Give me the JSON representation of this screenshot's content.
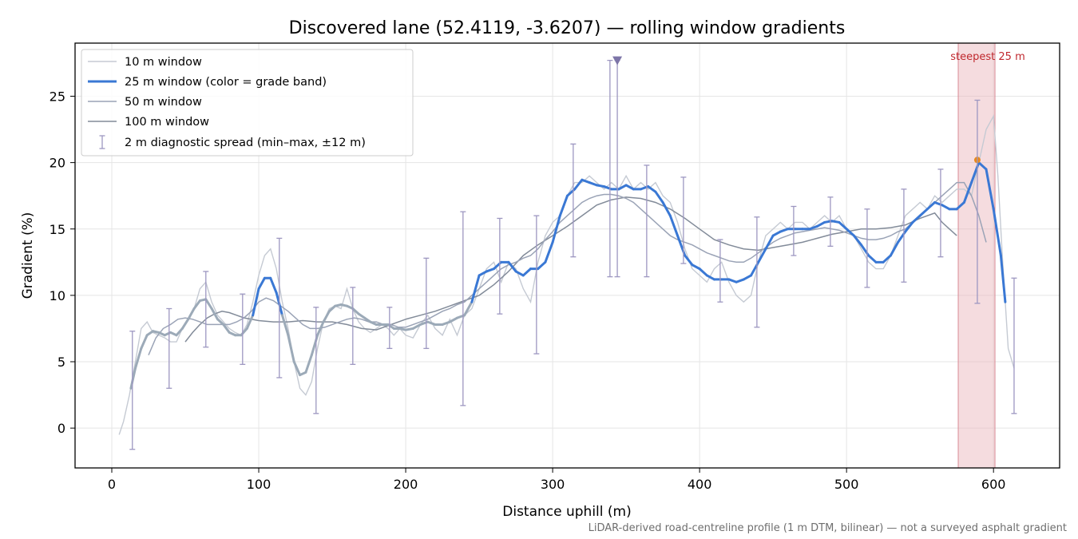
{
  "chart_data": {
    "type": "line",
    "title": "Discovered lane (52.4119, -3.6207) — rolling window gradients",
    "xlabel": "Distance uphill (m)",
    "ylabel": "Gradient (%)",
    "xlim": [
      -25,
      645
    ],
    "ylim": [
      -3,
      29
    ],
    "xticks": [
      0,
      100,
      200,
      300,
      400,
      500,
      600
    ],
    "yticks": [
      0,
      5,
      10,
      15,
      20,
      25
    ],
    "grid": true,
    "legend_position": "top-left",
    "footnote": "LiDAR-derived road-centreline profile (1 m DTM, bilinear) — not a surveyed asphalt gradient",
    "colors": {
      "w10": "#c5cad3",
      "w25": "#3a78d4",
      "w25_low": "#9caab8",
      "w50": "#9aa3b6",
      "w100": "#828b99",
      "spread": "#9d97c1",
      "marker": "#7d75a8",
      "steep_band": "#e9b1b8",
      "steep_edge": "#d88a95",
      "steep_point": "#e8891f"
    },
    "series": [
      {
        "name": "10 m window",
        "x": [
          5,
          8,
          12,
          16,
          20,
          24,
          28,
          32,
          36,
          40,
          44,
          48,
          52,
          56,
          60,
          64,
          68,
          72,
          76,
          80,
          84,
          88,
          92,
          96,
          100,
          104,
          108,
          112,
          116,
          120,
          124,
          128,
          132,
          136,
          140,
          144,
          148,
          152,
          156,
          160,
          164,
          168,
          172,
          176,
          180,
          184,
          188,
          192,
          196,
          200,
          205,
          210,
          215,
          220,
          225,
          230,
          235,
          240,
          245,
          250,
          255,
          260,
          265,
          270,
          275,
          280,
          285,
          290,
          295,
          300,
          305,
          310,
          315,
          320,
          325,
          330,
          335,
          340,
          345,
          350,
          355,
          360,
          365,
          370,
          375,
          380,
          385,
          390,
          395,
          400,
          405,
          410,
          415,
          420,
          425,
          430,
          435,
          440,
          445,
          450,
          455,
          460,
          465,
          470,
          475,
          480,
          485,
          490,
          495,
          500,
          505,
          510,
          515,
          520,
          525,
          530,
          535,
          540,
          545,
          550,
          555,
          560,
          565,
          570,
          575,
          580,
          585,
          590,
          595,
          600,
          603,
          606,
          610,
          614
        ],
        "values": [
          -0.5,
          0.5,
          2.5,
          5.0,
          7.5,
          8.0,
          7.2,
          7.0,
          6.8,
          6.5,
          6.5,
          7.5,
          8.2,
          9.0,
          10.5,
          11.0,
          9.5,
          8.5,
          8.0,
          7.5,
          7.2,
          7.0,
          7.8,
          9.5,
          11.5,
          13.0,
          13.5,
          12.0,
          9.5,
          7.5,
          5.0,
          3.0,
          2.5,
          3.5,
          6.0,
          8.0,
          9.0,
          9.2,
          9.0,
          10.5,
          9.0,
          8.0,
          7.5,
          7.2,
          7.5,
          7.8,
          7.5,
          7.0,
          7.5,
          7.0,
          6.8,
          7.8,
          8.5,
          7.5,
          7.0,
          8.2,
          7.0,
          8.5,
          9.0,
          10.5,
          12.0,
          12.5,
          11.0,
          12.5,
          12.0,
          10.5,
          9.5,
          12.5,
          14.5,
          15.5,
          16.0,
          17.5,
          18.5,
          18.5,
          19.0,
          18.5,
          18.0,
          18.5,
          18.0,
          19.0,
          18.0,
          18.5,
          18.0,
          18.5,
          17.5,
          17.0,
          15.5,
          13.5,
          12.0,
          11.5,
          11.0,
          12.0,
          12.5,
          11.0,
          10.0,
          9.5,
          10.0,
          12.5,
          14.5,
          15.0,
          15.5,
          15.0,
          15.5,
          15.5,
          15.0,
          15.5,
          16.0,
          15.5,
          16.0,
          15.0,
          14.5,
          13.5,
          12.5,
          12.0,
          12.0,
          13.0,
          14.5,
          16.0,
          16.5,
          17.0,
          16.5,
          17.5,
          17.0,
          17.5,
          18.0,
          18.0,
          17.5,
          20.0,
          22.5,
          23.5,
          19.0,
          13.0,
          6.0,
          4.5
        ],
        "note": ""
      },
      {
        "name": "25 m window (color = grade band)",
        "x": [
          13,
          16,
          20,
          24,
          28,
          32,
          36,
          40,
          44,
          48,
          52,
          56,
          60,
          64,
          68,
          72,
          76,
          80,
          84,
          88,
          92,
          96,
          100,
          104,
          108,
          112,
          116,
          120,
          124,
          128,
          132,
          136,
          140,
          144,
          148,
          152,
          156,
          160,
          164,
          168,
          172,
          176,
          180,
          184,
          188,
          192,
          196,
          200,
          205,
          210,
          215,
          220,
          225,
          230,
          235,
          240,
          245,
          250,
          255,
          260,
          265,
          270,
          275,
          280,
          285,
          290,
          295,
          300,
          305,
          310,
          315,
          320,
          325,
          330,
          335,
          340,
          345,
          350,
          355,
          360,
          365,
          370,
          375,
          380,
          385,
          390,
          395,
          400,
          405,
          410,
          415,
          420,
          425,
          430,
          435,
          440,
          445,
          450,
          455,
          460,
          465,
          470,
          475,
          480,
          485,
          490,
          495,
          500,
          505,
          510,
          515,
          520,
          525,
          530,
          535,
          540,
          545,
          550,
          555,
          560,
          565,
          570,
          575,
          580,
          585,
          590,
          595,
          600,
          605,
          608
        ],
        "values": [
          3.0,
          4.5,
          6.0,
          7.0,
          7.3,
          7.2,
          7.0,
          7.2,
          7.0,
          7.5,
          8.2,
          9.0,
          9.6,
          9.7,
          9.0,
          8.2,
          7.8,
          7.2,
          7.0,
          7.0,
          7.5,
          8.5,
          10.5,
          11.3,
          11.3,
          10.2,
          8.5,
          7.0,
          5.0,
          4.0,
          4.2,
          5.5,
          7.0,
          8.0,
          8.8,
          9.2,
          9.3,
          9.2,
          9.0,
          8.6,
          8.3,
          8.0,
          7.8,
          7.8,
          7.8,
          7.5,
          7.5,
          7.4,
          7.5,
          7.8,
          8.0,
          7.8,
          7.8,
          8.0,
          8.3,
          8.5,
          9.5,
          11.5,
          11.8,
          12.0,
          12.5,
          12.5,
          11.8,
          11.5,
          12.0,
          12.0,
          12.5,
          14.0,
          16.0,
          17.5,
          18.0,
          18.7,
          18.5,
          18.3,
          18.2,
          18.0,
          18.0,
          18.3,
          18.0,
          18.0,
          18.2,
          17.8,
          17.0,
          16.0,
          14.5,
          13.0,
          12.3,
          12.0,
          11.5,
          11.2,
          11.2,
          11.2,
          11.0,
          11.2,
          11.5,
          12.5,
          13.5,
          14.5,
          14.8,
          15.0,
          15.0,
          15.0,
          15.0,
          15.2,
          15.5,
          15.6,
          15.5,
          15.0,
          14.5,
          13.8,
          13.0,
          12.5,
          12.5,
          13.0,
          14.0,
          14.8,
          15.5,
          16.0,
          16.5,
          17.0,
          16.8,
          16.5,
          16.5,
          17.0,
          18.5,
          20.0,
          19.5,
          16.5,
          13.0,
          9.5
        ],
        "low_grade_threshold": 10
      },
      {
        "name": "50 m window",
        "x": [
          25,
          30,
          35,
          40,
          45,
          50,
          55,
          60,
          65,
          70,
          75,
          80,
          85,
          90,
          95,
          100,
          105,
          110,
          115,
          120,
          125,
          130,
          135,
          140,
          145,
          150,
          155,
          160,
          165,
          170,
          175,
          180,
          185,
          190,
          195,
          200,
          205,
          210,
          215,
          220,
          225,
          230,
          235,
          240,
          245,
          250,
          255,
          260,
          265,
          270,
          275,
          280,
          285,
          290,
          295,
          300,
          305,
          310,
          315,
          320,
          325,
          330,
          335,
          340,
          345,
          350,
          355,
          360,
          365,
          370,
          375,
          380,
          385,
          390,
          395,
          400,
          405,
          410,
          415,
          420,
          425,
          430,
          435,
          440,
          445,
          450,
          455,
          460,
          465,
          470,
          475,
          480,
          485,
          490,
          495,
          500,
          505,
          510,
          515,
          520,
          525,
          530,
          535,
          540,
          545,
          550,
          555,
          560,
          565,
          570,
          575,
          580,
          585,
          590,
          595
        ],
        "values": [
          5.5,
          6.8,
          7.5,
          7.8,
          8.2,
          8.3,
          8.2,
          8.0,
          7.8,
          7.8,
          7.8,
          7.8,
          8.0,
          8.3,
          8.8,
          9.5,
          9.8,
          9.6,
          9.2,
          8.8,
          8.3,
          7.8,
          7.5,
          7.5,
          7.6,
          7.8,
          8.0,
          8.2,
          8.3,
          8.2,
          8.0,
          8.0,
          7.8,
          7.8,
          7.6,
          7.6,
          7.8,
          8.0,
          8.2,
          8.5,
          8.8,
          9.0,
          9.3,
          9.5,
          10.0,
          10.5,
          11.0,
          11.5,
          12.0,
          12.3,
          12.5,
          12.8,
          13.0,
          13.5,
          14.2,
          14.8,
          15.5,
          16.0,
          16.5,
          17.0,
          17.3,
          17.5,
          17.6,
          17.6,
          17.5,
          17.3,
          17.0,
          16.5,
          16.0,
          15.5,
          15.0,
          14.5,
          14.2,
          14.0,
          13.8,
          13.5,
          13.2,
          13.0,
          12.8,
          12.6,
          12.5,
          12.5,
          12.8,
          13.2,
          13.6,
          14.0,
          14.3,
          14.5,
          14.7,
          14.8,
          14.9,
          15.0,
          15.1,
          15.0,
          14.9,
          14.7,
          14.5,
          14.3,
          14.2,
          14.2,
          14.3,
          14.5,
          14.8,
          15.0,
          15.5,
          16.0,
          16.5,
          17.0,
          17.5,
          18.0,
          18.5,
          18.5,
          17.5,
          16.0,
          14.0
        ]
      },
      {
        "name": "100 m window",
        "x": [
          50,
          55,
          60,
          65,
          70,
          75,
          80,
          85,
          90,
          95,
          100,
          110,
          120,
          130,
          140,
          150,
          160,
          170,
          180,
          190,
          200,
          210,
          220,
          230,
          240,
          250,
          260,
          270,
          280,
          290,
          300,
          310,
          320,
          330,
          340,
          350,
          360,
          370,
          380,
          390,
          400,
          410,
          420,
          430,
          440,
          450,
          460,
          470,
          480,
          490,
          500,
          510,
          520,
          530,
          540,
          550,
          560,
          565,
          570,
          575
        ],
        "values": [
          6.5,
          7.2,
          7.8,
          8.3,
          8.6,
          8.8,
          8.7,
          8.5,
          8.3,
          8.2,
          8.1,
          8.0,
          8.0,
          8.1,
          8.0,
          8.0,
          7.8,
          7.5,
          7.4,
          7.8,
          8.2,
          8.5,
          8.8,
          9.2,
          9.6,
          10.0,
          10.8,
          11.8,
          13.0,
          13.8,
          14.5,
          15.2,
          16.0,
          16.8,
          17.2,
          17.4,
          17.3,
          17.0,
          16.5,
          15.8,
          15.0,
          14.2,
          13.8,
          13.5,
          13.4,
          13.6,
          13.8,
          14.0,
          14.3,
          14.6,
          14.8,
          15.0,
          15.0,
          15.1,
          15.3,
          15.8,
          16.2,
          15.5,
          15.0,
          14.5
        ]
      }
    ],
    "diagnostic_spread": {
      "name": "2 m diagnostic spread (min–max, ±12 m)",
      "x": [
        14,
        39,
        64,
        89,
        114,
        139,
        164,
        189,
        214,
        239,
        264,
        289,
        314,
        339,
        364,
        389,
        414,
        439,
        464,
        489,
        514,
        539,
        564,
        589,
        614
      ],
      "min": [
        -1.6,
        3.0,
        6.1,
        4.8,
        3.8,
        1.1,
        4.8,
        6.0,
        6.0,
        1.7,
        8.6,
        5.6,
        12.9,
        11.4,
        11.4,
        12.4,
        9.5,
        7.6,
        13.0,
        13.7,
        10.6,
        11.0,
        12.9,
        9.4,
        1.1
      ],
      "max": [
        7.3,
        9.0,
        11.8,
        10.1,
        14.3,
        9.1,
        10.6,
        9.1,
        12.8,
        16.3,
        15.8,
        16.0,
        21.4,
        27.7,
        19.8,
        18.9,
        14.2,
        15.9,
        16.7,
        17.4,
        16.5,
        18.0,
        19.5,
        24.7,
        11.3
      ],
      "x_extra": 344,
      "min_extra": 11.4,
      "max_extra": 27.7
    },
    "marker": {
      "x": 344,
      "y": 27.7
    },
    "steepest_band": {
      "label": "steepest 25 m",
      "x0": 576,
      "x1": 601,
      "peak_x": 589,
      "peak_y": 20.2
    }
  }
}
